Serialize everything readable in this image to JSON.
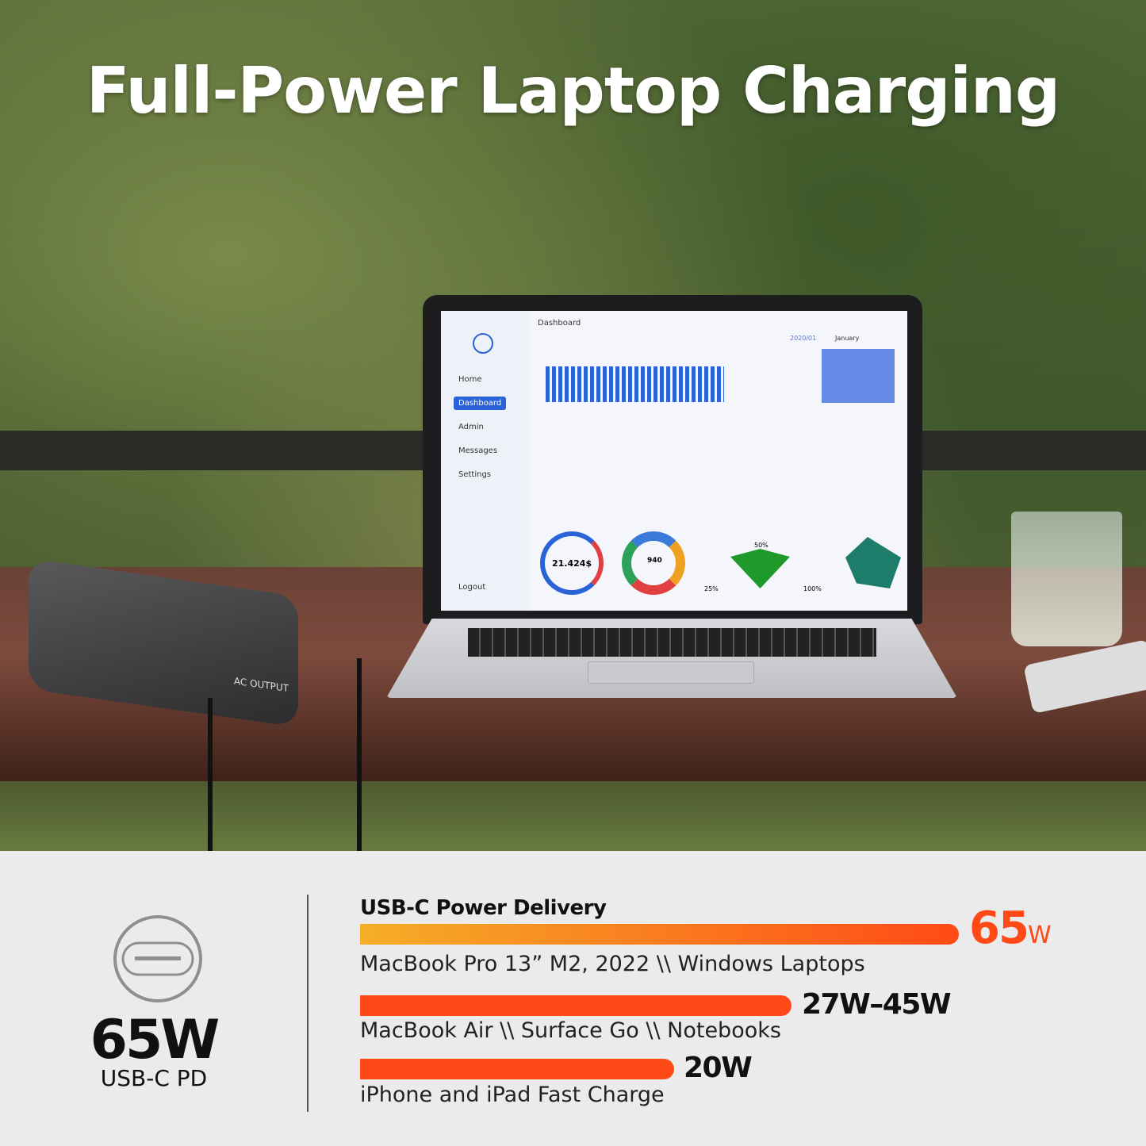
{
  "headline": "Full-Power Laptop Charging",
  "photo": {
    "screen": {
      "title": "Dashboard",
      "nav": [
        "Home",
        "Dashboard",
        "Admin",
        "Messages",
        "Settings"
      ],
      "active": "Dashboard",
      "logout": "Logout",
      "expenses_value": "21.424$",
      "revenue_value": "940",
      "calendar_month": "January",
      "calendar_year": "2020/01",
      "gauge_labels": [
        "25%",
        "50%",
        "100%"
      ]
    },
    "power_bank_label": "AC OUTPUT"
  },
  "badge": {
    "icon": "usb-c-port-icon",
    "wattage": "65W",
    "label": "USB-C PD"
  },
  "section_title": "USB-C Power Delivery",
  "tiers": [
    {
      "watts": "65",
      "unit": "W",
      "max_watts": 65,
      "devices": "MacBook Pro 13” M2, 2022 \\\\ Windows Laptops",
      "color": "#f5a623 to #ff4a17"
    },
    {
      "watts": "27W–45W",
      "max_watts": 45,
      "devices": "MacBook Air \\\\ Surface Go \\\\ Notebooks",
      "color": "#ff4a17"
    },
    {
      "watts": "20W",
      "max_watts": 20,
      "devices": "iPhone and iPad Fast Charge",
      "color": "#ff4a17"
    }
  ]
}
